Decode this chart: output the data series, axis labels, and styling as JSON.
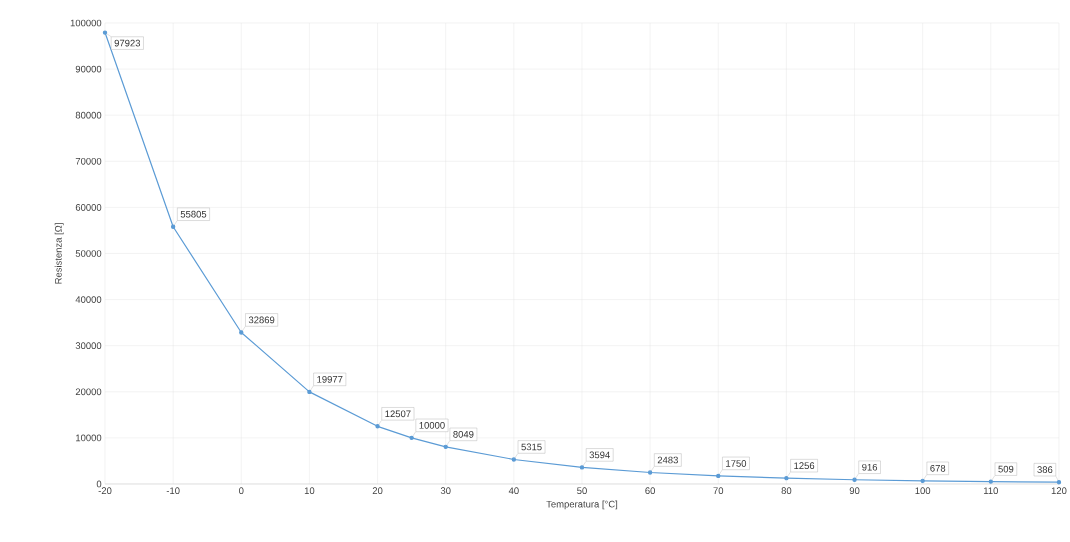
{
  "chart_data": {
    "type": "line",
    "xlabel": "Temperatura [°C]",
    "ylabel": "Resistenza [Ω]",
    "x": [
      -20,
      -10,
      0,
      10,
      20,
      25,
      30,
      40,
      50,
      60,
      70,
      80,
      90,
      100,
      110,
      120
    ],
    "values": [
      97923,
      55805,
      32869,
      19977,
      12507,
      10000,
      8049,
      5315,
      3594,
      2483,
      1750,
      1256,
      916,
      678,
      509,
      386
    ],
    "color": "#5b9bd5",
    "marker": "circle",
    "line_style": "solid",
    "data_labels": true,
    "grid": true,
    "xlim": [
      -20,
      120
    ],
    "xticks": [
      -20,
      -10,
      0,
      10,
      20,
      30,
      40,
      50,
      60,
      70,
      80,
      90,
      100,
      110,
      120
    ],
    "ylim": [
      0,
      100000
    ],
    "yticks": [
      0,
      10000,
      20000,
      30000,
      40000,
      50000,
      60000,
      70000,
      80000,
      90000,
      100000
    ]
  }
}
